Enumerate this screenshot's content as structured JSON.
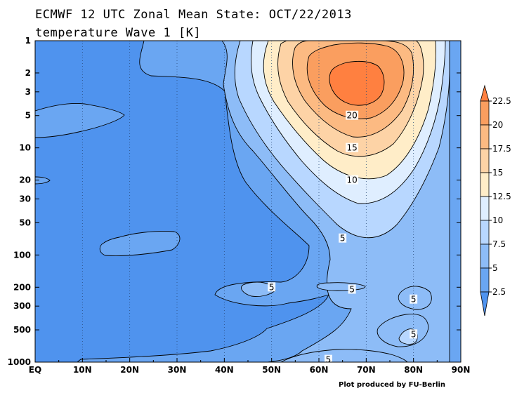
{
  "chart_data": {
    "type": "heatmap",
    "title": "ECMWF 12 UTC Zonal Mean State: OCT/22/2013",
    "subtitle": "temperature Wave 1 [K]",
    "credit": "Plot produced by FU-Berlin",
    "xlabel": "",
    "ylabel": "",
    "x_ticks": [
      "EQ",
      "10N",
      "20N",
      "30N",
      "40N",
      "50N",
      "60N",
      "70N",
      "80N",
      "90N"
    ],
    "x_values": [
      0,
      10,
      20,
      30,
      40,
      50,
      60,
      70,
      80,
      90
    ],
    "xlim": [
      0,
      90
    ],
    "y_ticks": [
      "1",
      "2",
      "3",
      "5",
      "10",
      "20",
      "30",
      "50",
      "100",
      "200",
      "300",
      "500",
      "1000"
    ],
    "y_values": [
      1,
      2,
      3,
      5,
      10,
      20,
      30,
      50,
      100,
      200,
      300,
      500,
      1000
    ],
    "ylim": [
      1000,
      1
    ],
    "y_scale": "log",
    "grid": "dotted vertical lines at latitude ticks",
    "contour_levels": [
      2.5,
      5,
      7.5,
      10,
      12.5,
      15,
      17.5,
      20,
      22.5
    ],
    "contour_labels": [
      {
        "text": "20",
        "lat": 67,
        "p": 5
      },
      {
        "text": "15",
        "lat": 67,
        "p": 10
      },
      {
        "text": "10",
        "lat": 67,
        "p": 20
      },
      {
        "text": "5",
        "lat": 65,
        "p": 70
      },
      {
        "text": "5",
        "lat": 50,
        "p": 200
      },
      {
        "text": "5",
        "lat": 67,
        "p": 210
      },
      {
        "text": "5",
        "lat": 80,
        "p": 260
      },
      {
        "text": "5",
        "lat": 80,
        "p": 550
      },
      {
        "text": "5",
        "lat": 62,
        "p": 950
      }
    ],
    "colorbar": {
      "labels": [
        "22.5",
        "20",
        "17.5",
        "15",
        "12.5",
        "10",
        "7.5",
        "5",
        "2.5"
      ],
      "colors": [
        "#ff8040",
        "#fa9e5f",
        "#fcba82",
        "#fdd3a6",
        "#ffedc8",
        "#dfeeff",
        "#b8d7ff",
        "#8dbcf7",
        "#6aa6f2",
        "#4f93ee"
      ]
    },
    "max_region": {
      "lat": 68,
      "p": 2.5,
      "value": 22.5
    },
    "fill_colors": {
      "base": "#4f93ee",
      "2.5": "#6aa6f2",
      "5": "#8dbcf7",
      "7.5": "#b8d7ff",
      "10": "#dfeeff",
      "12.5": "#ffedc8",
      "15": "#fdd3a6",
      "17.5": "#fcba82",
      "20": "#fa9e5f",
      "22.5": "#ff8040"
    }
  }
}
